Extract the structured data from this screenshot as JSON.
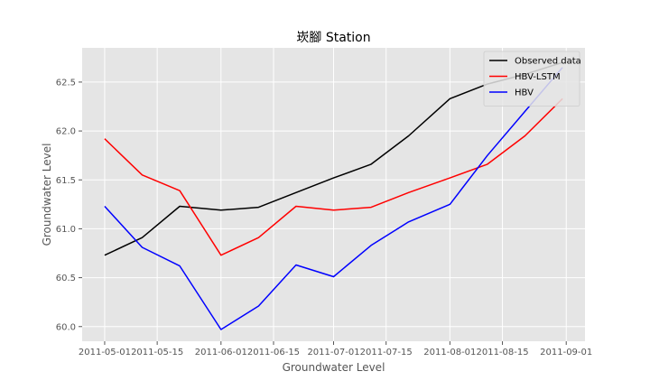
{
  "chart_data": {
    "type": "line",
    "title": "崁腳 Station",
    "xlabel": "Groundwater Level",
    "ylabel": "Groundwater Level",
    "x": [
      "2011-05-01",
      "2011-05-11",
      "2011-05-21",
      "2011-06-01",
      "2011-06-11",
      "2011-06-21",
      "2011-07-01",
      "2011-07-11",
      "2011-07-21",
      "2011-08-01",
      "2011-08-11",
      "2011-08-21",
      "2011-08-31"
    ],
    "series": [
      {
        "name": "Observed data",
        "color": "#000000",
        "values": [
          60.73,
          60.91,
          61.23,
          61.19,
          61.22,
          61.37,
          61.52,
          61.66,
          61.95,
          62.33,
          62.48,
          62.58,
          62.7
        ]
      },
      {
        "name": "HBV-LSTM",
        "color": "#ff0000",
        "values": [
          61.92,
          61.55,
          61.39,
          60.73,
          60.91,
          61.23,
          61.19,
          61.22,
          61.37,
          61.52,
          61.66,
          61.95,
          62.33
        ]
      },
      {
        "name": "HBV",
        "color": "#0000ff",
        "values": [
          61.23,
          60.81,
          60.62,
          59.97,
          60.21,
          60.63,
          60.51,
          60.83,
          61.07,
          61.25,
          61.75,
          62.2,
          62.65
        ]
      }
    ],
    "xticks": [
      "2011-05-01",
      "2011-05-15",
      "2011-06-01",
      "2011-06-15",
      "2011-07-01",
      "2011-07-15",
      "2011-08-01",
      "2011-08-15",
      "2011-09-01"
    ],
    "yticks": [
      "60.0",
      "60.5",
      "61.0",
      "61.5",
      "62.0",
      "62.5"
    ],
    "xlim": [
      "2011-04-25",
      "2011-09-06"
    ],
    "ylim": [
      59.85,
      62.85
    ],
    "grid": true,
    "legend": "top-right",
    "plot_background": "#e5e5e5",
    "grid_color": "#ffffff"
  }
}
